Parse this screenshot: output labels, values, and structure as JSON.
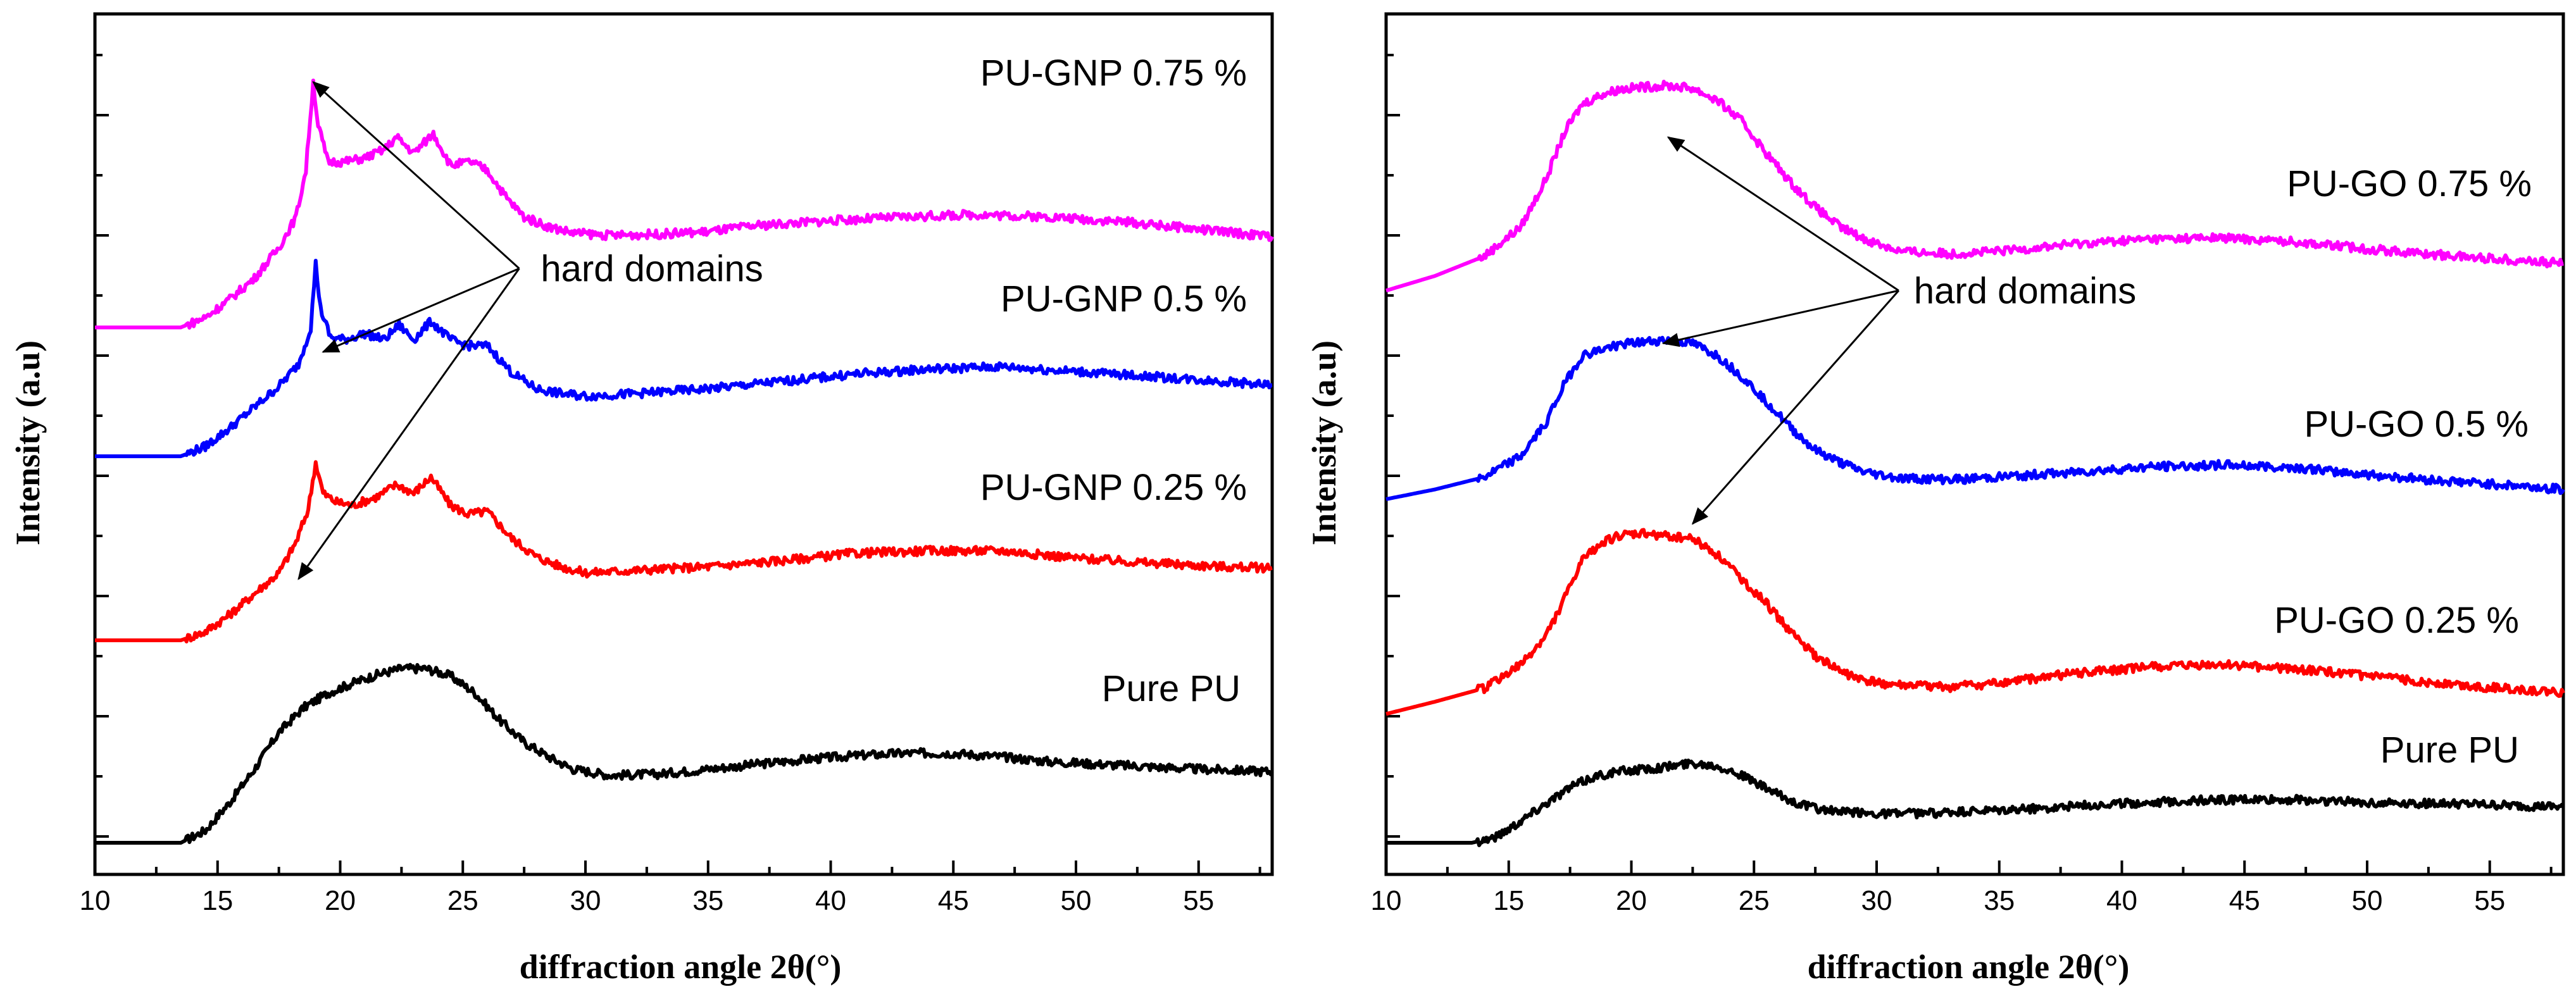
{
  "chart_data": [
    {
      "type": "line",
      "panel": "left",
      "xlabel": "diffraction angle 2θ(°)",
      "ylabel": "Intensity (a.u)",
      "xlim": [
        10,
        58
      ],
      "xticks": [
        10,
        15,
        20,
        25,
        30,
        35,
        40,
        45,
        50,
        55
      ],
      "ylim": [
        0,
        6.6
      ],
      "yticks_shown": false,
      "colors": {
        "pure": "#000000",
        "low": "#ff0000",
        "mid": "#0000ff",
        "high": "#ff00ff"
      },
      "series": [
        {
          "name": "Pure PU",
          "color": "#000000",
          "x": [
            10,
            13.5,
            14.5,
            15.5,
            16.5,
            17.5,
            18.5,
            19.5,
            20.5,
            21.5,
            22.5,
            23.5,
            24.5,
            25.5,
            26.5,
            27.5,
            28.5,
            29.5,
            31,
            33,
            35,
            37,
            39,
            41,
            43,
            45,
            47,
            49,
            52,
            55,
            58
          ],
          "y": [
            0.0,
            0.0,
            0.1,
            0.33,
            0.6,
            0.9,
            1.1,
            1.22,
            1.3,
            1.37,
            1.42,
            1.42,
            1.36,
            1.22,
            1.0,
            0.82,
            0.7,
            0.6,
            0.55,
            0.56,
            0.6,
            0.64,
            0.68,
            0.71,
            0.73,
            0.73,
            0.7,
            0.66,
            0.63,
            0.6,
            0.58
          ]
        },
        {
          "name": "PU-GNP 0.25 %",
          "color": "#ff0000",
          "x": [
            10,
            13.5,
            14.5,
            15.5,
            16.5,
            17.5,
            18.2,
            18.7,
            19.0,
            19.3,
            19.8,
            20.5,
            21.5,
            22.3,
            23.0,
            23.7,
            24.5,
            25.2,
            26.0,
            27.0,
            28.0,
            29.0,
            30,
            32,
            35,
            38,
            41,
            44,
            47,
            50,
            53,
            56,
            58
          ],
          "y": [
            1.65,
            1.65,
            1.72,
            1.86,
            2.03,
            2.2,
            2.45,
            2.72,
            3.1,
            2.85,
            2.78,
            2.75,
            2.82,
            2.92,
            2.85,
            2.98,
            2.75,
            2.68,
            2.7,
            2.48,
            2.33,
            2.25,
            2.2,
            2.22,
            2.25,
            2.3,
            2.36,
            2.38,
            2.38,
            2.32,
            2.28,
            2.25,
            2.24
          ]
        },
        {
          "name": "PU-GNP 0.5 %",
          "color": "#0000ff",
          "x": [
            10,
            13.5,
            14.5,
            15.5,
            16.5,
            17.5,
            18.3,
            18.8,
            19.0,
            19.2,
            19.6,
            20.2,
            21.0,
            21.8,
            22.4,
            23.0,
            23.7,
            24.5,
            25.2,
            26.0,
            27.0,
            28.0,
            29.0,
            30,
            32,
            35,
            38,
            41,
            44,
            47,
            50,
            53,
            56,
            58
          ],
          "y": [
            3.15,
            3.15,
            3.23,
            3.38,
            3.55,
            3.72,
            3.9,
            4.2,
            4.72,
            4.35,
            4.12,
            4.1,
            4.15,
            4.1,
            4.22,
            4.1,
            4.25,
            4.1,
            4.05,
            4.05,
            3.83,
            3.7,
            3.66,
            3.64,
            3.66,
            3.7,
            3.76,
            3.82,
            3.86,
            3.88,
            3.84,
            3.8,
            3.76,
            3.73
          ]
        },
        {
          "name": "PU-GNP 0.75 %",
          "color": "#ff00ff",
          "x": [
            10,
            13.5,
            14.5,
            15.5,
            16.5,
            17.5,
            18.2,
            18.6,
            18.9,
            19.1,
            19.5,
            20.2,
            21.0,
            21.8,
            22.3,
            23.0,
            23.8,
            24.5,
            25.3,
            26.0,
            26.8,
            27.5,
            28.5,
            29.5,
            31,
            33,
            35,
            37,
            40,
            43,
            46,
            49,
            52,
            55,
            58
          ],
          "y": [
            4.2,
            4.2,
            4.28,
            4.43,
            4.6,
            4.85,
            5.1,
            5.48,
            6.2,
            5.85,
            5.55,
            5.55,
            5.58,
            5.65,
            5.75,
            5.62,
            5.78,
            5.52,
            5.55,
            5.48,
            5.25,
            5.1,
            5.02,
            4.97,
            4.95,
            4.96,
            4.98,
            5.03,
            5.07,
            5.1,
            5.12,
            5.1,
            5.06,
            5.0,
            4.94
          ]
        }
      ],
      "labels": [
        "PU-GNP 0.75 %",
        "PU-GNP 0.5 %",
        "PU-GNP 0.25 %",
        "Pure PU"
      ],
      "annotation": {
        "text": "hard domains",
        "anchor": [
          27.3,
          4.68
        ],
        "targets": [
          [
            18.9,
            6.2
          ],
          [
            19.3,
            4.0
          ],
          [
            18.3,
            2.15
          ]
        ]
      }
    },
    {
      "type": "line",
      "panel": "right",
      "xlabel": "diffraction angle 2θ(°)",
      "ylabel": "Intensity (a.u)",
      "xlim": [
        10,
        58
      ],
      "xticks": [
        10,
        15,
        20,
        25,
        30,
        35,
        40,
        45,
        50,
        55
      ],
      "ylim": [
        0,
        6.6
      ],
      "yticks_shown": false,
      "colors": {
        "pure": "#000000",
        "low": "#ff0000",
        "mid": "#0000ff",
        "high": "#ff00ff"
      },
      "series": [
        {
          "name": "Pure PU",
          "color": "#000000",
          "x": [
            10,
            13.5,
            14.5,
            15.5,
            16.5,
            17.5,
            18.5,
            19.5,
            20.5,
            21.5,
            22.5,
            23.5,
            24.5,
            25.5,
            26.5,
            27.5,
            28.5,
            30,
            32,
            35,
            38,
            41,
            44,
            47,
            50,
            53,
            56,
            58
          ],
          "y": [
            0.0,
            0.0,
            0.05,
            0.18,
            0.32,
            0.45,
            0.54,
            0.58,
            0.6,
            0.62,
            0.65,
            0.63,
            0.55,
            0.44,
            0.34,
            0.28,
            0.25,
            0.24,
            0.24,
            0.26,
            0.3,
            0.33,
            0.35,
            0.35,
            0.33,
            0.32,
            0.3,
            0.29
          ]
        },
        {
          "name": "PU-GO 0.25 %",
          "color": "#ff0000",
          "x": [
            10,
            12,
            14,
            15.5,
            16.5,
            17.3,
            18.0,
            18.8,
            19.5,
            20.5,
            21.5,
            22.5,
            23.5,
            24.5,
            25.5,
            26.5,
            27.5,
            28.5,
            29.5,
            31,
            33,
            35,
            38,
            41,
            44,
            47,
            50,
            53,
            56,
            58
          ],
          "y": [
            1.05,
            1.15,
            1.26,
            1.45,
            1.68,
            2.0,
            2.3,
            2.45,
            2.5,
            2.52,
            2.5,
            2.48,
            2.35,
            2.15,
            1.95,
            1.72,
            1.52,
            1.4,
            1.32,
            1.28,
            1.27,
            1.3,
            1.38,
            1.43,
            1.45,
            1.42,
            1.36,
            1.3,
            1.25,
            1.22
          ]
        },
        {
          "name": "PU-GO 0.5 %",
          "color": "#0000ff",
          "x": [
            10,
            12,
            14,
            15.5,
            16.5,
            17.3,
            18.0,
            18.8,
            19.5,
            20.5,
            21.5,
            22.5,
            23.5,
            24.5,
            25.5,
            26.5,
            27.5,
            28.5,
            29.5,
            31,
            33,
            35,
            38,
            41,
            44,
            47,
            50,
            53,
            56,
            58
          ],
          "y": [
            2.8,
            2.88,
            2.98,
            3.15,
            3.42,
            3.75,
            3.97,
            4.02,
            4.06,
            4.08,
            4.1,
            4.07,
            3.97,
            3.8,
            3.6,
            3.38,
            3.2,
            3.1,
            3.02,
            2.97,
            2.96,
            2.98,
            3.02,
            3.06,
            3.08,
            3.06,
            3.0,
            2.95,
            2.91,
            2.88
          ]
        },
        {
          "name": "PU-GO 0.75 %",
          "color": "#ff00ff",
          "x": [
            10,
            12,
            14,
            15.5,
            16.5,
            17.3,
            18.0,
            18.8,
            19.5,
            20.5,
            21.5,
            22.5,
            23.5,
            24.5,
            25.5,
            26.5,
            27.5,
            28.5,
            29.5,
            31,
            33,
            35,
            38,
            41,
            44,
            47,
            50,
            53,
            56,
            58
          ],
          "y": [
            4.5,
            4.62,
            4.78,
            5.02,
            5.4,
            5.8,
            6.02,
            6.1,
            6.14,
            6.16,
            6.17,
            6.15,
            6.05,
            5.88,
            5.62,
            5.38,
            5.18,
            5.02,
            4.92,
            4.82,
            4.8,
            4.82,
            4.88,
            4.92,
            4.93,
            4.9,
            4.84,
            4.79,
            4.75,
            4.72
          ]
        }
      ],
      "labels": [
        "PU-GO 0.75 %",
        "PU-GO 0.5 %",
        "PU-GO 0.25 %",
        "Pure PU"
      ],
      "annotation": {
        "text": "hard domains",
        "anchor": [
          30.9,
          4.5
        ],
        "targets": [
          [
            21.5,
            5.75
          ],
          [
            21.3,
            4.07
          ],
          [
            22.5,
            2.6
          ]
        ]
      }
    }
  ]
}
